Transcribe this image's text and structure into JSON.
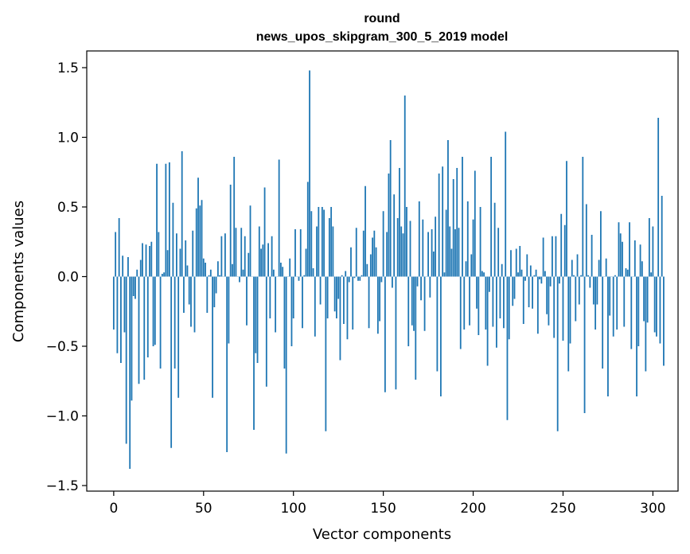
{
  "chart_data": {
    "type": "bar",
    "title_line1": "round",
    "title_line2": "news_upos_skipgram_300_5_2019 model",
    "xlabel": "Vector components",
    "ylabel": "Components values",
    "xlim": [
      -15,
      314
    ],
    "ylim": [
      -1.54,
      1.62
    ],
    "xticks": [
      0,
      50,
      100,
      150,
      200,
      250,
      300
    ],
    "xtick_labels": [
      "0",
      "50",
      "100",
      "150",
      "200",
      "250",
      "300"
    ],
    "yticks": [
      -1.5,
      -1.0,
      -0.5,
      0.0,
      0.5,
      1.0,
      1.5
    ],
    "ytick_labels": [
      "−1.5",
      "−1.0",
      "−0.5",
      "0.0",
      "0.5",
      "1.0",
      "1.5"
    ],
    "bar_color": "#1f77b4",
    "values": [
      -0.38,
      0.32,
      -0.55,
      0.42,
      -0.62,
      0.15,
      -0.4,
      -1.2,
      0.14,
      -1.38,
      -0.89,
      -0.14,
      -0.16,
      0.05,
      -0.77,
      0.12,
      0.24,
      -0.74,
      0.23,
      -0.58,
      0.22,
      0.25,
      -0.5,
      -0.49,
      0.81,
      0.32,
      -0.66,
      0.02,
      0.03,
      0.81,
      0.19,
      0.82,
      -1.23,
      0.53,
      -0.66,
      0.31,
      -0.87,
      0.2,
      0.9,
      -0.26,
      0.26,
      0.08,
      -0.2,
      -0.36,
      0.33,
      -0.4,
      0.49,
      0.71,
      0.51,
      0.55,
      0.13,
      0.1,
      -0.26,
      0.01,
      0.05,
      -0.87,
      -0.22,
      -0.12,
      0.11,
      0.01,
      0.29,
      0.0,
      0.31,
      -1.26,
      -0.48,
      0.66,
      0.09,
      0.86,
      0.35,
      0.0,
      -0.04,
      0.35,
      0.05,
      0.29,
      -0.35,
      0.17,
      0.51,
      0.0,
      -1.1,
      -0.55,
      -0.62,
      0.36,
      0.2,
      0.23,
      0.64,
      -0.79,
      0.24,
      -0.3,
      0.29,
      0.05,
      -0.4,
      0.0,
      0.84,
      0.1,
      0.07,
      -0.66,
      -1.27,
      0.0,
      0.13,
      -0.5,
      -0.3,
      0.34,
      0.0,
      -0.03,
      0.34,
      -0.37,
      0.01,
      0.2,
      0.68,
      1.48,
      0.47,
      0.06,
      -0.43,
      0.36,
      0.5,
      -0.2,
      0.5,
      0.48,
      -1.11,
      -0.3,
      0.42,
      0.5,
      0.36,
      -0.25,
      -0.3,
      -0.16,
      -0.6,
      0.01,
      -0.34,
      0.04,
      -0.45,
      -0.04,
      0.21,
      -0.38,
      -0.01,
      0.35,
      -0.03,
      -0.03,
      0.01,
      0.33,
      0.65,
      0.09,
      -0.37,
      0.16,
      0.28,
      0.33,
      0.21,
      -0.41,
      -0.32,
      -0.04,
      0.47,
      -0.83,
      0.32,
      0.74,
      0.98,
      -0.08,
      0.59,
      -0.81,
      0.42,
      0.78,
      0.36,
      0.31,
      1.3,
      0.5,
      -0.5,
      0.4,
      -0.35,
      -0.39,
      -0.74,
      -0.07,
      0.54,
      -0.17,
      0.41,
      -0.39,
      0.0,
      0.32,
      -0.15,
      0.34,
      0.18,
      0.43,
      -0.68,
      0.74,
      -0.86,
      0.79,
      0.03,
      0.48,
      0.98,
      0.36,
      0.2,
      0.7,
      0.34,
      0.78,
      0.35,
      -0.52,
      0.86,
      -0.38,
      0.11,
      0.54,
      -0.35,
      0.16,
      0.41,
      0.76,
      -0.23,
      -0.42,
      0.5,
      0.04,
      0.03,
      -0.38,
      -0.64,
      -0.11,
      0.86,
      -0.36,
      0.53,
      -0.51,
      0.35,
      -0.3,
      0.09,
      -0.37,
      1.04,
      -1.03,
      -0.45,
      0.19,
      -0.21,
      -0.16,
      0.2,
      0.03,
      0.22,
      0.05,
      -0.34,
      -0.03,
      0.16,
      -0.22,
      0.08,
      -0.23,
      0.01,
      0.05,
      -0.41,
      -0.02,
      -0.05,
      0.28,
      0.04,
      -0.27,
      -0.35,
      -0.07,
      0.29,
      -0.44,
      0.29,
      -1.11,
      -0.05,
      0.45,
      -0.46,
      0.37,
      0.83,
      -0.68,
      -0.48,
      0.12,
      0.01,
      -0.32,
      0.16,
      -0.2,
      0.01,
      0.86,
      -0.98,
      0.52,
      0.01,
      -0.08,
      0.3,
      -0.2,
      -0.38,
      -0.2,
      0.12,
      0.47,
      -0.66,
      0.0,
      0.13,
      -0.86,
      -0.28,
      0.0,
      -0.43,
      0.01,
      -0.38,
      0.39,
      0.31,
      0.25,
      -0.36,
      0.06,
      0.05,
      0.39,
      -0.52,
      0.0,
      0.26,
      -0.86,
      -0.5,
      0.23,
      0.11,
      -0.32,
      -0.68,
      -0.33,
      0.42,
      0.03,
      0.36,
      -0.4,
      -0.43,
      1.14,
      -0.48,
      0.58,
      -0.64
    ]
  }
}
